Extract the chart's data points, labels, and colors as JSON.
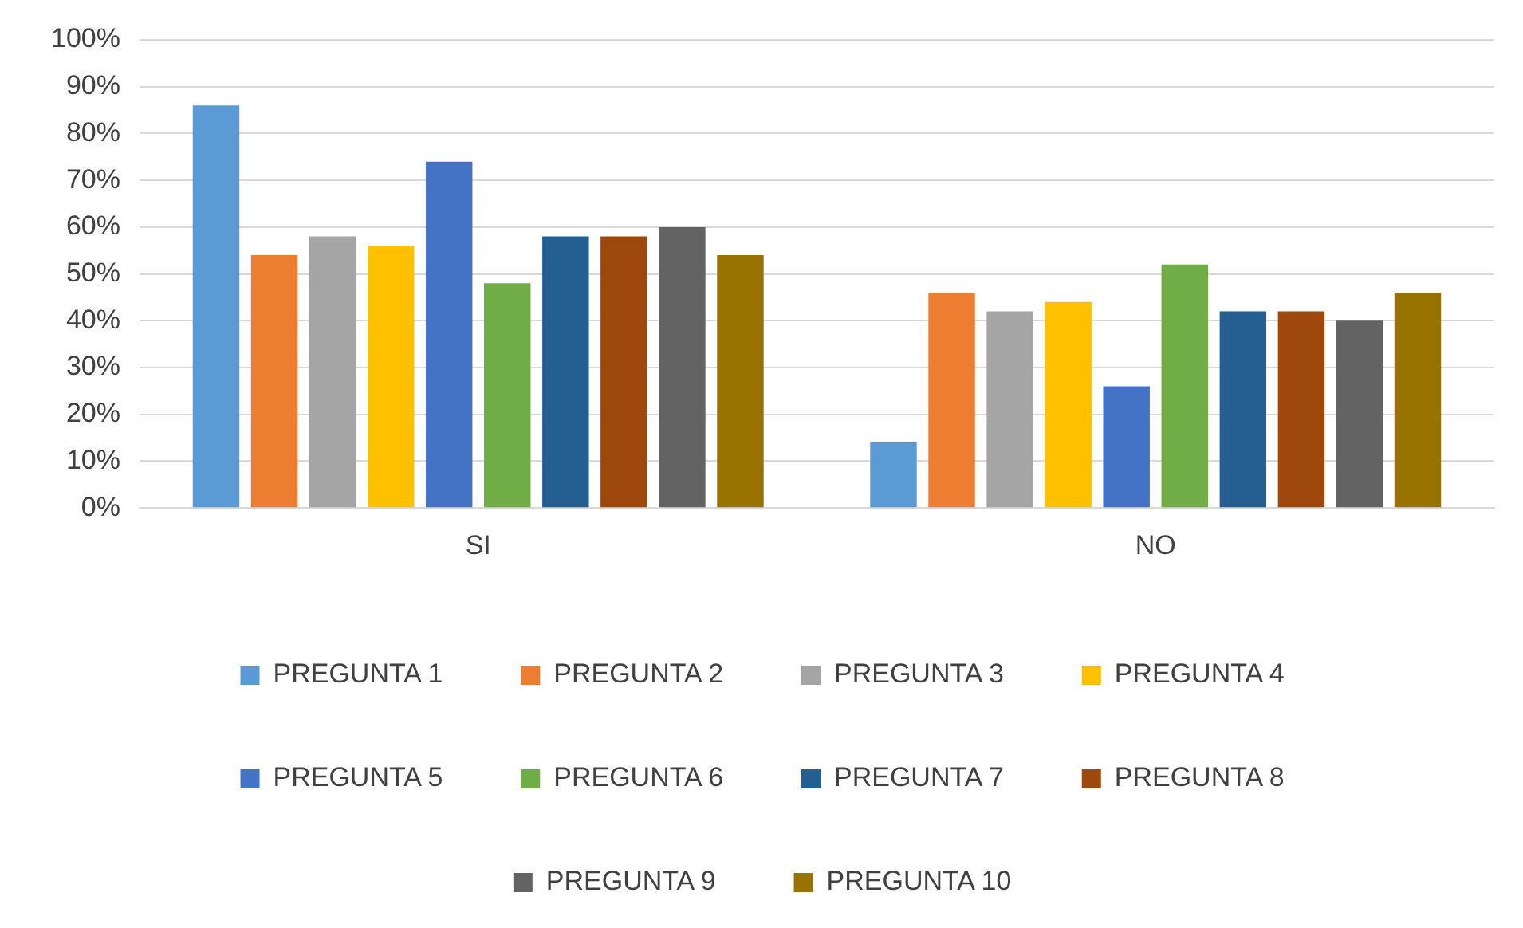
{
  "chart_data": {
    "type": "bar",
    "categories": [
      "SI",
      "NO"
    ],
    "series": [
      {
        "name": "PREGUNTA 1",
        "color": "#5b9bd5",
        "values": [
          86,
          14
        ]
      },
      {
        "name": "PREGUNTA 2",
        "color": "#ed7d31",
        "values": [
          54,
          46
        ]
      },
      {
        "name": "PREGUNTA 3",
        "color": "#a5a5a5",
        "values": [
          58,
          42
        ]
      },
      {
        "name": "PREGUNTA 4",
        "color": "#ffc000",
        "values": [
          56,
          44
        ]
      },
      {
        "name": "PREGUNTA 5",
        "color": "#4472c4",
        "values": [
          74,
          26
        ]
      },
      {
        "name": "PREGUNTA 6",
        "color": "#70ad47",
        "values": [
          48,
          52
        ]
      },
      {
        "name": "PREGUNTA 7",
        "color": "#255e91",
        "values": [
          58,
          42
        ]
      },
      {
        "name": "PREGUNTA 8",
        "color": "#9e480e",
        "values": [
          58,
          42
        ]
      },
      {
        "name": "PREGUNTA 9",
        "color": "#636363",
        "values": [
          60,
          40
        ]
      },
      {
        "name": "PREGUNTA 10",
        "color": "#997300",
        "values": [
          54,
          46
        ]
      }
    ],
    "ylim": [
      0,
      100
    ],
    "yticks": [
      {
        "value": 0,
        "label": "0%"
      },
      {
        "value": 10,
        "label": "10%"
      },
      {
        "value": 20,
        "label": "20%"
      },
      {
        "value": 30,
        "label": "30%"
      },
      {
        "value": 40,
        "label": "40%"
      },
      {
        "value": 50,
        "label": "50%"
      },
      {
        "value": 60,
        "label": "60%"
      },
      {
        "value": 70,
        "label": "70%"
      },
      {
        "value": 80,
        "label": "80%"
      },
      {
        "value": 90,
        "label": "90%"
      },
      {
        "value": 100,
        "label": "100%"
      }
    ],
    "grid": "y",
    "legend": "bottom"
  }
}
